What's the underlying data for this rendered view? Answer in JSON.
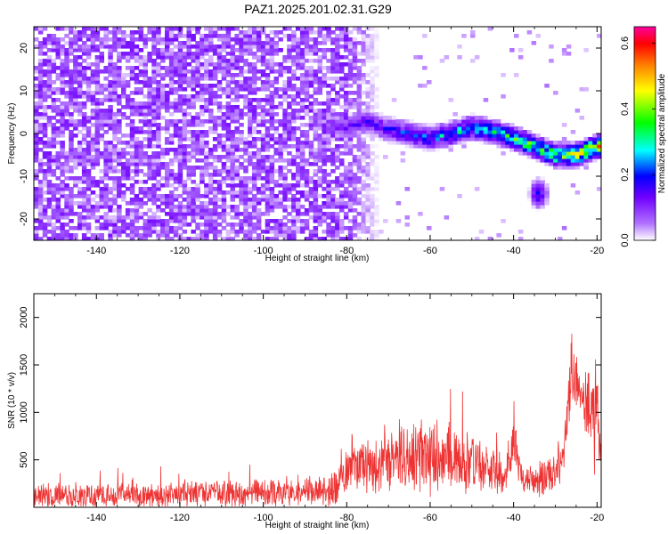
{
  "title": "PAZ1.2025.201.02.31.G29",
  "chart_data": [
    {
      "type": "heatmap",
      "xlabel": "Height of straight line (km)",
      "ylabel": "Frequency (Hz)",
      "xlim": [
        -155,
        -19
      ],
      "ylim": [
        -25,
        25
      ],
      "xticks": [
        -140,
        -120,
        -100,
        -80,
        -60,
        -40,
        -20
      ],
      "yticks": [
        -20,
        -10,
        0,
        10,
        20
      ],
      "colorbar": {
        "label": "Normalized spectral amplitude",
        "range": [
          0,
          0.65
        ],
        "ticks": [
          "0.0",
          "0.2",
          "0.4",
          "0.6"
        ],
        "colors": [
          "#ffffff",
          "#b070ff",
          "#7000ff",
          "#0000ff",
          "#00ffff",
          "#00ff00",
          "#ffff00",
          "#ff8000",
          "#ff0000",
          "#ff00a0"
        ]
      },
      "features": {
        "noise_region_x": [
          -155,
          -80
        ],
        "noise_amplitude": [
          0.02,
          0.12
        ],
        "ridge_points": [
          [
            -80,
            1.5
          ],
          [
            -75,
            3
          ],
          [
            -70,
            1
          ],
          [
            -65,
            0
          ],
          [
            -60,
            -1
          ],
          [
            -55,
            0
          ],
          [
            -50,
            1.5
          ],
          [
            -45,
            0.5
          ],
          [
            -40,
            -1
          ],
          [
            -35,
            -3
          ],
          [
            -30,
            -5
          ],
          [
            -25,
            -5
          ],
          [
            -20,
            -3
          ]
        ],
        "ridge_amplitude": [
          0.12,
          0.6
        ],
        "secondary_blob": {
          "x": -34,
          "y": -14,
          "amplitude": 0.25
        }
      }
    },
    {
      "type": "line",
      "xlabel": "Height of straight line (km)",
      "ylabel": "SNR (10 * v/v)",
      "xlim": [
        -155,
        -19
      ],
      "ylim": [
        0,
        2250
      ],
      "xticks": [
        -140,
        -120,
        -100,
        -80,
        -60,
        -40,
        -20
      ],
      "yticks": [
        500,
        1000,
        1500,
        2000
      ],
      "series": [
        {
          "color": "#ee3333",
          "x": [
            -155,
            -140,
            -130,
            -120,
            -110,
            -100,
            -90,
            -82,
            -80,
            -75,
            -70,
            -65,
            -60,
            -55,
            -50,
            -45,
            -42,
            -40,
            -38,
            -35,
            -32,
            -30,
            -28,
            -26,
            -24,
            -22,
            -20,
            -19
          ],
          "baseline": [
            120,
            120,
            120,
            130,
            140,
            150,
            160,
            200,
            420,
            430,
            450,
            520,
            540,
            500,
            480,
            400,
            350,
            700,
            300,
            300,
            330,
            380,
            600,
            1500,
            1200,
            1100,
            900,
            700
          ],
          "spread": [
            150,
            150,
            150,
            160,
            170,
            180,
            190,
            220,
            280,
            320,
            350,
            420,
            450,
            440,
            380,
            300,
            250,
            300,
            200,
            200,
            230,
            250,
            300,
            500,
            300,
            500,
            800,
            300
          ]
        }
      ]
    }
  ]
}
